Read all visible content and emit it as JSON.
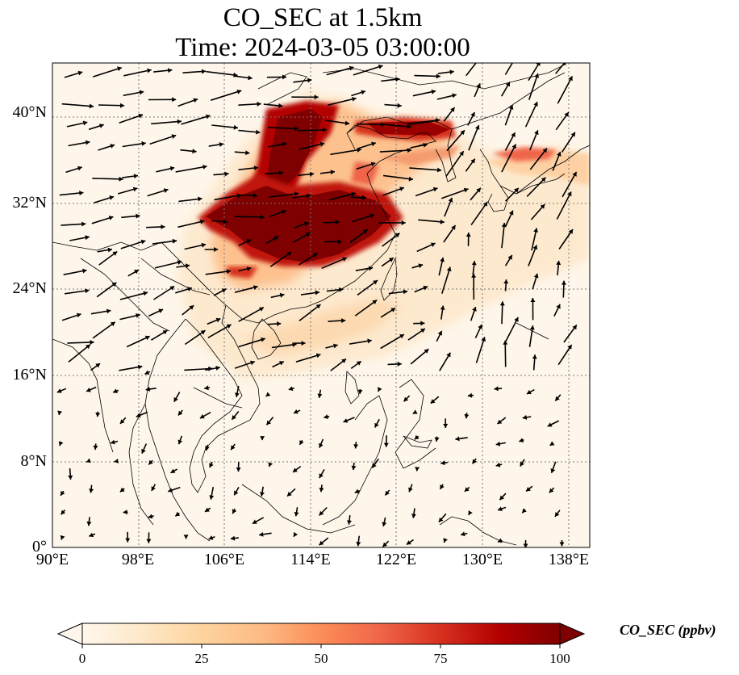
{
  "title": {
    "line1": "CO_SEC at 1.5km",
    "line2": "Time: 2024-03-05 03:00:00"
  },
  "map": {
    "lon_range": [
      90,
      140
    ],
    "lat_range": [
      0,
      45
    ],
    "gridlines": true,
    "x_ticks": [
      {
        "value": 90,
        "label": "90°E"
      },
      {
        "value": 98,
        "label": "98°E"
      },
      {
        "value": 106,
        "label": "106°E"
      },
      {
        "value": 114,
        "label": "114°E"
      },
      {
        "value": 122,
        "label": "122°E"
      },
      {
        "value": 130,
        "label": "130°E"
      },
      {
        "value": 138,
        "label": "138°E"
      }
    ],
    "y_ticks": [
      {
        "value": 0,
        "label": "0°"
      },
      {
        "value": 8,
        "label": "8°N"
      },
      {
        "value": 16,
        "label": "16°N"
      },
      {
        "value": 24,
        "label": "24°N"
      },
      {
        "value": 32,
        "label": "32°N"
      },
      {
        "value": 40,
        "label": "40°N"
      }
    ],
    "wind_vectors": true
  },
  "colorbar": {
    "label": "CO_SEC (ppbv)",
    "colormap": "OrRd",
    "min": 0,
    "max": 100,
    "extend": "both",
    "ticks": [
      {
        "value": 0,
        "label": "0"
      },
      {
        "value": 25,
        "label": "25"
      },
      {
        "value": 50,
        "label": "50"
      },
      {
        "value": 75,
        "label": "75"
      },
      {
        "value": 100,
        "label": "100"
      }
    ]
  },
  "colors": {
    "low": "#fff7ec",
    "mid": "#fdbb84",
    "high": "#7f0000"
  }
}
